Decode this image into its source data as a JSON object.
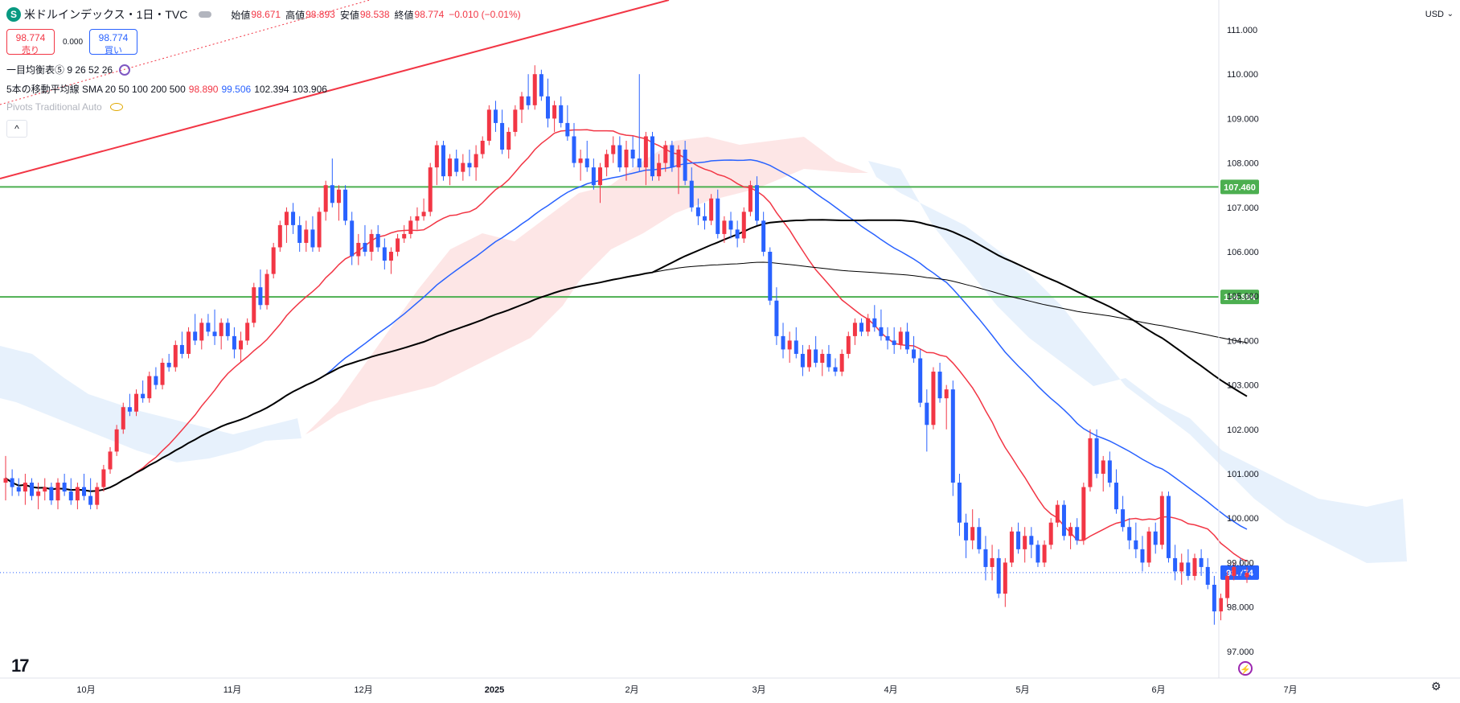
{
  "header": {
    "symbol_icon": "S",
    "title": "米ドルインデックス・1日・TVC",
    "open_label": "始値",
    "open": "98.671",
    "high_label": "高値",
    "high": "98.893",
    "low_label": "安値",
    "low": "98.538",
    "close_label": "終値",
    "close": "98.774",
    "change": "−0.010 (−0.01%)"
  },
  "trade": {
    "sell_price": "98.774",
    "sell_label": "売り",
    "spread": "0.000",
    "buy_price": "98.774",
    "buy_label": "買い"
  },
  "indicators": {
    "ichimoku": "一目均衡表⑤ 9 26 52 26",
    "sma_label": "5本の移動平均線 SMA 20 50 100 200 500",
    "sma_20": "98.890",
    "sma_50": "99.506",
    "sma_100": "102.394",
    "sma_200": "103.906",
    "pivots": "Pivots Traditional Auto"
  },
  "currency": "USD",
  "collapse_icon": "^",
  "colors": {
    "up": "#f23645",
    "down": "#2962ff",
    "sma20": "#f23645",
    "sma50": "#2962ff",
    "sma100": "#000000",
    "sma200": "#000000",
    "hline": "#4caf50",
    "cloud_bull": "#fde2e2",
    "cloud_bear": "#e3eefc"
  },
  "chart_data": {
    "type": "candlestick",
    "y_axis_ticks": [
      "111.000",
      "110.000",
      "109.000",
      "108.000",
      "107.000",
      "106.000",
      "105.000",
      "104.000",
      "103.000",
      "102.000",
      "101.000",
      "100.000",
      "99.000",
      "98.000",
      "97.000"
    ],
    "x_axis_ticks": [
      "10月",
      "11月",
      "12月",
      "2025",
      "2月",
      "3月",
      "4月",
      "5月",
      "6月",
      "7月"
    ],
    "ylim": [
      96.9,
      111.2
    ],
    "horizontal_lines": [
      {
        "name": "level-1",
        "value": 107.46,
        "label": "107.460"
      },
      {
        "name": "level-2",
        "value": 104.984,
        "label": "104.984"
      }
    ],
    "last_price": {
      "value": 98.774,
      "label": "98.774"
    },
    "candles": [
      [
        100.8,
        101.4,
        100.4,
        100.9
      ],
      [
        100.9,
        101.1,
        100.5,
        100.7
      ],
      [
        100.7,
        100.9,
        100.5,
        100.6
      ],
      [
        100.6,
        101.0,
        100.3,
        100.8
      ],
      [
        100.8,
        100.9,
        100.4,
        100.5
      ],
      [
        100.5,
        100.8,
        100.2,
        100.6
      ],
      [
        100.6,
        100.9,
        100.4,
        100.7
      ],
      [
        100.7,
        100.8,
        100.3,
        100.4
      ],
      [
        100.4,
        100.9,
        100.2,
        100.8
      ],
      [
        100.8,
        101.0,
        100.5,
        100.6
      ],
      [
        100.6,
        100.9,
        100.3,
        100.4
      ],
      [
        100.4,
        100.8,
        100.2,
        100.7
      ],
      [
        100.7,
        101.0,
        100.4,
        100.5
      ],
      [
        100.5,
        100.9,
        100.2,
        100.3
      ],
      [
        100.3,
        100.8,
        100.2,
        100.7
      ],
      [
        100.7,
        101.2,
        100.6,
        101.1
      ],
      [
        101.1,
        101.6,
        101.0,
        101.5
      ],
      [
        101.5,
        102.1,
        101.4,
        102.0
      ],
      [
        102.0,
        102.6,
        101.9,
        102.5
      ],
      [
        102.5,
        102.8,
        102.3,
        102.4
      ],
      [
        102.4,
        102.9,
        102.3,
        102.8
      ],
      [
        102.8,
        103.1,
        102.6,
        102.7
      ],
      [
        102.7,
        103.3,
        102.6,
        103.2
      ],
      [
        103.2,
        103.4,
        102.9,
        103.0
      ],
      [
        103.0,
        103.6,
        102.9,
        103.5
      ],
      [
        103.5,
        103.7,
        103.3,
        103.4
      ],
      [
        103.4,
        104.0,
        103.3,
        103.9
      ],
      [
        103.9,
        104.2,
        103.6,
        103.7
      ],
      [
        103.7,
        104.3,
        103.6,
        104.2
      ],
      [
        104.2,
        104.6,
        103.9,
        104.0
      ],
      [
        104.0,
        104.5,
        103.8,
        104.4
      ],
      [
        104.4,
        104.6,
        104.1,
        104.2
      ],
      [
        104.2,
        104.7,
        103.9,
        104.1
      ],
      [
        104.1,
        104.5,
        103.8,
        104.4
      ],
      [
        104.4,
        104.5,
        104.0,
        104.1
      ],
      [
        104.1,
        104.3,
        103.6,
        103.8
      ],
      [
        103.8,
        104.2,
        103.5,
        104.0
      ],
      [
        104.0,
        104.5,
        103.9,
        104.4
      ],
      [
        104.4,
        105.3,
        104.3,
        105.2
      ],
      [
        105.2,
        105.6,
        104.7,
        104.8
      ],
      [
        104.8,
        105.6,
        104.7,
        105.5
      ],
      [
        105.5,
        106.2,
        105.4,
        106.1
      ],
      [
        106.1,
        106.7,
        106.0,
        106.6
      ],
      [
        106.6,
        107.0,
        106.2,
        106.9
      ],
      [
        106.9,
        107.1,
        106.4,
        106.6
      ],
      [
        106.6,
        106.8,
        106.0,
        106.2
      ],
      [
        106.2,
        106.7,
        106.0,
        106.5
      ],
      [
        106.5,
        106.8,
        106.0,
        106.1
      ],
      [
        106.1,
        107.0,
        106.0,
        106.9
      ],
      [
        106.9,
        107.6,
        106.7,
        107.5
      ],
      [
        107.5,
        108.1,
        107.0,
        107.1
      ],
      [
        107.1,
        107.5,
        106.7,
        107.4
      ],
      [
        107.4,
        107.5,
        106.6,
        106.7
      ],
      [
        106.7,
        106.9,
        105.7,
        105.9
      ],
      [
        105.9,
        106.4,
        105.7,
        106.2
      ],
      [
        106.2,
        106.6,
        105.9,
        106.0
      ],
      [
        106.0,
        106.5,
        105.8,
        106.4
      ],
      [
        106.4,
        106.6,
        106.0,
        106.1
      ],
      [
        106.1,
        106.3,
        105.6,
        105.8
      ],
      [
        105.8,
        106.1,
        105.5,
        106.0
      ],
      [
        106.0,
        106.4,
        105.9,
        106.3
      ],
      [
        106.3,
        106.6,
        106.2,
        106.4
      ],
      [
        106.4,
        106.8,
        106.3,
        106.7
      ],
      [
        106.7,
        107.0,
        106.5,
        106.8
      ],
      [
        106.8,
        107.2,
        106.7,
        106.9
      ],
      [
        106.9,
        108.0,
        106.8,
        107.9
      ],
      [
        107.9,
        108.5,
        107.5,
        108.4
      ],
      [
        108.4,
        108.5,
        107.6,
        107.7
      ],
      [
        107.7,
        108.2,
        107.5,
        108.1
      ],
      [
        108.1,
        108.3,
        107.7,
        107.8
      ],
      [
        107.8,
        108.2,
        107.6,
        108.0
      ],
      [
        108.0,
        108.3,
        107.7,
        107.9
      ],
      [
        107.9,
        108.4,
        107.6,
        108.2
      ],
      [
        108.2,
        108.6,
        108.1,
        108.5
      ],
      [
        108.5,
        109.3,
        108.4,
        109.2
      ],
      [
        109.2,
        109.4,
        108.7,
        108.9
      ],
      [
        108.9,
        109.2,
        108.2,
        108.3
      ],
      [
        108.3,
        108.8,
        108.1,
        108.7
      ],
      [
        108.7,
        109.3,
        108.6,
        109.2
      ],
      [
        109.2,
        109.6,
        108.9,
        109.5
      ],
      [
        109.5,
        110.0,
        109.2,
        109.3
      ],
      [
        109.3,
        110.2,
        109.2,
        110.0
      ],
      [
        110.0,
        110.1,
        109.4,
        109.5
      ],
      [
        109.5,
        109.9,
        108.8,
        109.0
      ],
      [
        109.0,
        109.4,
        108.7,
        109.3
      ],
      [
        109.3,
        109.5,
        108.8,
        108.9
      ],
      [
        108.9,
        109.3,
        108.5,
        108.6
      ],
      [
        108.6,
        108.9,
        107.9,
        108.0
      ],
      [
        108.0,
        108.3,
        107.6,
        108.1
      ],
      [
        108.1,
        108.5,
        107.8,
        107.9
      ],
      [
        107.9,
        108.1,
        107.4,
        107.5
      ],
      [
        107.5,
        108.0,
        107.1,
        107.9
      ],
      [
        107.9,
        108.3,
        107.7,
        108.2
      ],
      [
        108.2,
        108.6,
        108.0,
        108.4
      ],
      [
        108.4,
        108.6,
        107.8,
        107.9
      ],
      [
        107.9,
        108.5,
        107.6,
        108.3
      ],
      [
        108.3,
        108.6,
        107.9,
        108.1
      ],
      [
        108.1,
        110.0,
        107.8,
        107.9
      ],
      [
        107.9,
        108.7,
        107.5,
        108.6
      ],
      [
        108.6,
        108.7,
        107.6,
        107.7
      ],
      [
        107.7,
        108.2,
        107.6,
        108.0
      ],
      [
        108.0,
        108.5,
        107.8,
        108.4
      ],
      [
        108.4,
        108.5,
        107.8,
        107.9
      ],
      [
        107.9,
        108.4,
        107.3,
        108.3
      ],
      [
        108.3,
        108.5,
        107.5,
        107.6
      ],
      [
        107.6,
        107.9,
        106.9,
        107.0
      ],
      [
        107.0,
        107.2,
        106.6,
        106.8
      ],
      [
        106.8,
        107.1,
        106.5,
        106.7
      ],
      [
        106.7,
        107.3,
        106.6,
        107.2
      ],
      [
        107.2,
        107.4,
        106.3,
        106.4
      ],
      [
        106.4,
        106.8,
        106.2,
        106.7
      ],
      [
        106.7,
        106.9,
        106.3,
        106.5
      ],
      [
        106.5,
        106.7,
        106.1,
        106.3
      ],
      [
        106.3,
        107.0,
        106.2,
        106.9
      ],
      [
        106.9,
        107.6,
        106.8,
        107.5
      ],
      [
        107.5,
        107.7,
        106.6,
        106.7
      ],
      [
        106.7,
        106.9,
        105.9,
        106.0
      ],
      [
        106.0,
        106.1,
        104.8,
        104.9
      ],
      [
        104.9,
        105.2,
        103.9,
        104.1
      ],
      [
        104.1,
        104.4,
        103.6,
        103.8
      ],
      [
        103.8,
        104.2,
        103.5,
        104.0
      ],
      [
        104.0,
        104.3,
        103.6,
        103.7
      ],
      [
        103.7,
        103.9,
        103.2,
        103.4
      ],
      [
        103.4,
        103.9,
        103.3,
        103.8
      ],
      [
        103.8,
        104.1,
        103.4,
        103.5
      ],
      [
        103.5,
        103.8,
        103.2,
        103.7
      ],
      [
        103.7,
        103.9,
        103.3,
        103.4
      ],
      [
        103.4,
        103.6,
        103.2,
        103.3
      ],
      [
        103.3,
        103.8,
        103.2,
        103.7
      ],
      [
        103.7,
        104.2,
        103.6,
        104.1
      ],
      [
        104.1,
        104.5,
        103.9,
        104.4
      ],
      [
        104.4,
        104.5,
        104.1,
        104.2
      ],
      [
        104.2,
        104.6,
        104.1,
        104.5
      ],
      [
        104.5,
        104.8,
        104.2,
        104.3
      ],
      [
        104.3,
        104.7,
        104.0,
        104.1
      ],
      [
        104.1,
        104.3,
        103.8,
        104.0
      ],
      [
        104.0,
        104.3,
        103.7,
        103.9
      ],
      [
        103.9,
        104.3,
        103.8,
        104.2
      ],
      [
        104.2,
        104.4,
        103.7,
        103.8
      ],
      [
        103.8,
        104.1,
        103.5,
        103.6
      ],
      [
        103.6,
        103.8,
        102.5,
        102.6
      ],
      [
        102.6,
        102.9,
        101.5,
        102.1
      ],
      [
        102.1,
        103.4,
        102.0,
        103.3
      ],
      [
        103.3,
        103.5,
        102.6,
        102.7
      ],
      [
        102.7,
        103.0,
        102.0,
        102.9
      ],
      [
        102.9,
        103.1,
        100.5,
        100.8
      ],
      [
        100.8,
        101.0,
        99.6,
        99.9
      ],
      [
        99.9,
        100.1,
        99.1,
        99.5
      ],
      [
        99.5,
        100.2,
        99.3,
        99.8
      ],
      [
        99.8,
        100.0,
        99.2,
        99.3
      ],
      [
        99.3,
        99.6,
        98.6,
        98.9
      ],
      [
        98.9,
        99.4,
        98.6,
        99.1
      ],
      [
        99.1,
        99.3,
        98.2,
        98.3
      ],
      [
        98.3,
        99.1,
        98.0,
        99.0
      ],
      [
        99.0,
        99.8,
        98.9,
        99.7
      ],
      [
        99.7,
        99.9,
        99.2,
        99.3
      ],
      [
        99.3,
        99.8,
        99.0,
        99.6
      ],
      [
        99.6,
        99.8,
        99.1,
        99.4
      ],
      [
        99.4,
        99.5,
        98.9,
        99.0
      ],
      [
        99.0,
        99.5,
        98.9,
        99.4
      ],
      [
        99.4,
        100.0,
        99.3,
        99.9
      ],
      [
        99.9,
        100.4,
        99.8,
        100.3
      ],
      [
        100.3,
        100.4,
        99.5,
        99.6
      ],
      [
        99.6,
        99.9,
        99.3,
        99.8
      ],
      [
        99.8,
        100.0,
        99.4,
        99.5
      ],
      [
        99.5,
        100.8,
        99.4,
        100.7
      ],
      [
        100.7,
        102.0,
        100.6,
        101.8
      ],
      [
        101.8,
        102.0,
        100.9,
        101.0
      ],
      [
        101.0,
        101.4,
        100.6,
        101.3
      ],
      [
        101.3,
        101.5,
        100.7,
        100.8
      ],
      [
        100.8,
        101.1,
        100.1,
        100.2
      ],
      [
        100.2,
        100.5,
        99.7,
        99.8
      ],
      [
        99.8,
        100.0,
        99.3,
        99.5
      ],
      [
        99.5,
        99.9,
        99.1,
        99.3
      ],
      [
        99.3,
        99.6,
        98.8,
        99.0
      ],
      [
        99.0,
        99.8,
        98.9,
        99.7
      ],
      [
        99.7,
        99.9,
        99.2,
        99.4
      ],
      [
        99.4,
        100.6,
        99.3,
        100.5
      ],
      [
        100.5,
        100.6,
        99.0,
        99.1
      ],
      [
        99.1,
        99.4,
        98.6,
        98.8
      ],
      [
        98.8,
        99.2,
        98.5,
        99.0
      ],
      [
        99.0,
        99.3,
        98.6,
        98.7
      ],
      [
        98.7,
        99.2,
        98.6,
        99.1
      ],
      [
        99.1,
        99.3,
        98.7,
        98.9
      ],
      [
        98.9,
        99.1,
        98.4,
        98.5
      ],
      [
        98.5,
        98.7,
        97.6,
        97.9
      ],
      [
        97.9,
        98.3,
        97.7,
        98.2
      ],
      [
        98.2,
        98.8,
        98.0,
        98.7
      ],
      [
        98.7,
        99.0,
        98.6,
        98.9
      ],
      [
        98.9,
        99.1,
        98.7,
        98.8
      ],
      [
        98.67,
        98.89,
        98.54,
        98.77
      ]
    ]
  }
}
